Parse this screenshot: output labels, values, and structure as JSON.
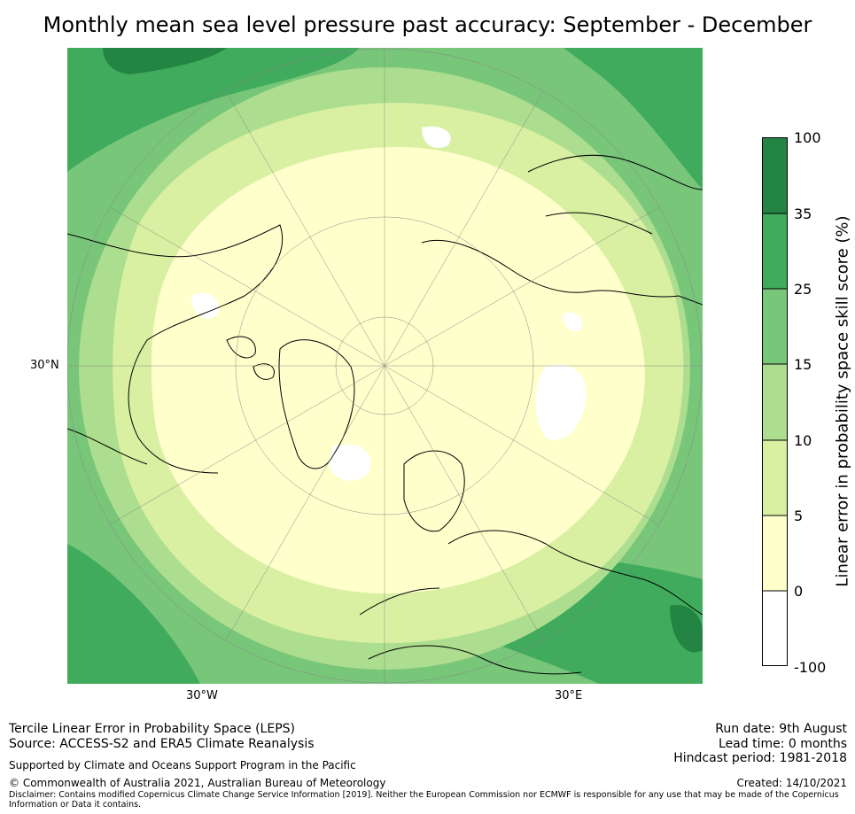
{
  "title": "Monthly mean sea level pressure past accuracy: September - December",
  "map": {
    "projection": "north-polar-stereographic",
    "lat_label": "30°N",
    "lon_labels": [
      "30°W",
      "30°E"
    ],
    "land_outline_color": "#000000",
    "graticule_color": "#888888"
  },
  "colorbar": {
    "label": "Linear error in probability space skill score (%)",
    "ticks": [
      "100",
      "35",
      "25",
      "15",
      "10",
      "5",
      "0",
      "-100"
    ],
    "levels": [
      {
        "from": -100,
        "to": 0,
        "color": "#ffffff"
      },
      {
        "from": 0,
        "to": 5,
        "color": "#ffffcc"
      },
      {
        "from": 5,
        "to": 10,
        "color": "#d9f0a3"
      },
      {
        "from": 10,
        "to": 15,
        "color": "#addd8e"
      },
      {
        "from": 15,
        "to": 25,
        "color": "#78c679"
      },
      {
        "from": 25,
        "to": 35,
        "color": "#41ab5d"
      },
      {
        "from": 35,
        "to": 100,
        "color": "#238443"
      }
    ]
  },
  "footer": {
    "method": "Tercile Linear Error in Probability Space (LEPS)",
    "source": "Source: ACCESS-S2 and ERA5 Climate Reanalysis",
    "support": "Supported by Climate and Oceans Support Program in the Pacific",
    "copyright": "© Commonwealth of Australia 2021, Australian Bureau of Meteorology",
    "disclaimer": "Disclaimer: Contains modified Copernicus Climate Change Service Information [2019]. Neither the European Commission nor ECMWF is responsible for any use that may be made of the Copernicus Information or Data it contains.",
    "run_date": "Run date: 9th August",
    "lead_time": "Lead time: 0 months",
    "hindcast": "Hindcast period: 1981-2018",
    "created": "Created: 14/10/2021"
  }
}
